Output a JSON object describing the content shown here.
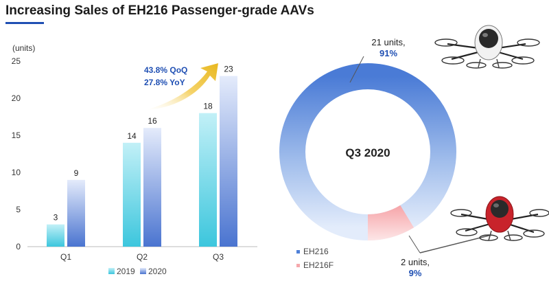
{
  "title": "Increasing Sales of EH216 Passenger-grade AAVs",
  "colors": {
    "series_2019": "#4fcfe3",
    "series_2020": "#4f7fd6",
    "pie_eh216": "#4f80d8",
    "pie_eh216f": "#f5a8ac",
    "accent": "#1f4fb3"
  },
  "chart_data": [
    {
      "type": "bar",
      "ylabel": "(units)",
      "ylim": [
        0,
        25
      ],
      "yticks": [
        0,
        5,
        10,
        15,
        20,
        25
      ],
      "categories": [
        "Q1",
        "Q2",
        "Q3"
      ],
      "series": [
        {
          "name": "2019",
          "values": [
            3,
            14,
            18
          ]
        },
        {
          "name": "2020",
          "values": [
            9,
            16,
            23
          ]
        }
      ],
      "annotations": [
        "43.8% QoQ",
        "27.8% YoY"
      ],
      "legend_position": "bottom"
    },
    {
      "type": "pie",
      "title": "Q3 2020",
      "labels": [
        "EH216",
        "EH216F"
      ],
      "values": [
        21,
        2
      ],
      "slice_labels": [
        {
          "units": "21 units,",
          "pct": "91%"
        },
        {
          "units": "2 units,",
          "pct": "9%"
        }
      ],
      "legend_position": "bottom-left"
    }
  ],
  "images": [
    "eh216-aav-white-icon",
    "eh216f-aav-red-icon"
  ]
}
